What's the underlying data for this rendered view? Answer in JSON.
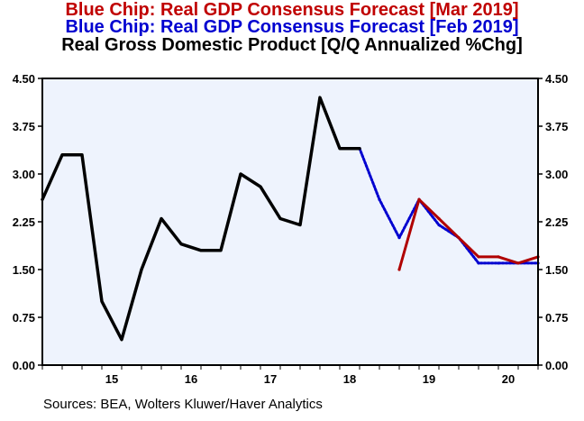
{
  "titles": {
    "line1": "Blue Chip: Real GDP Consensus Forecast [Mar 2019]",
    "line2": "Blue Chip: Real GDP Consensus Forecast [Feb 2019]",
    "line3": "Real Gross Domestic Product [Q/Q Annualized %Chg]"
  },
  "source": "Sources:   BEA, Wolters Kluwer/Haver Analytics",
  "colors": {
    "actual": "#000000",
    "mar_forecast": "#b00000",
    "feb_forecast": "#0000d0",
    "plot_background": "#eef3fd"
  },
  "chart_data": {
    "type": "line",
    "title": "Real Gross Domestic Product [Q/Q Annualized %Chg]",
    "xlabel": "",
    "ylabel": "",
    "x_tick_labels": [
      "15",
      "16",
      "17",
      "18",
      "19",
      "20"
    ],
    "y_tick_labels": [
      "4.50",
      "3.75",
      "3.00",
      "2.25",
      "1.50",
      "0.75",
      "0.00"
    ],
    "ylim": [
      0,
      4.5
    ],
    "y_ticks": [
      0,
      0.75,
      1.5,
      2.25,
      3.0,
      3.75,
      4.5
    ],
    "grid": false,
    "series": [
      {
        "name": "Real Gross Domestic Product [Q/Q Annualized %Chg]",
        "color": "#000000",
        "x": [
          "2014Q3",
          "2014Q4",
          "2015Q1",
          "2015Q2",
          "2015Q3",
          "2015Q4",
          "2016Q1",
          "2016Q2",
          "2016Q3",
          "2016Q4",
          "2017Q1",
          "2017Q2",
          "2017Q3",
          "2017Q4",
          "2018Q1",
          "2018Q2",
          "2018Q3"
        ],
        "values": [
          2.6,
          3.3,
          3.3,
          1.0,
          0.4,
          1.5,
          2.3,
          1.9,
          1.8,
          1.8,
          3.0,
          2.8,
          2.3,
          2.2,
          4.2,
          3.4,
          3.4
        ]
      },
      {
        "name": "Blue Chip: Real GDP Consensus Forecast [Feb 2019]",
        "color": "#0000d0",
        "x": [
          "2018Q3",
          "2018Q4",
          "2019Q1",
          "2019Q2",
          "2019Q3",
          "2019Q4",
          "2020Q1",
          "2020Q2",
          "2020Q3",
          "2020Q4"
        ],
        "values": [
          3.4,
          2.6,
          2.0,
          2.6,
          2.2,
          2.0,
          1.6,
          1.6,
          1.6,
          1.6
        ]
      },
      {
        "name": "Blue Chip: Real GDP Consensus Forecast [Mar 2019]",
        "color": "#b00000",
        "x": [
          "2019Q1",
          "2019Q2",
          "2019Q3",
          "2019Q4",
          "2020Q1",
          "2020Q2",
          "2020Q3",
          "2020Q4"
        ],
        "values": [
          1.5,
          2.6,
          2.3,
          2.0,
          1.7,
          1.7,
          1.6,
          1.7
        ]
      }
    ]
  }
}
